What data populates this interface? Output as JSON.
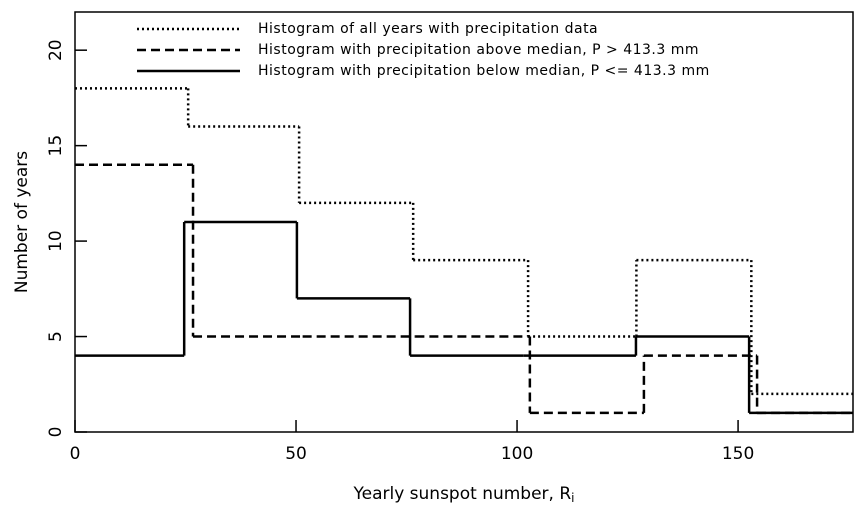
{
  "chart_data": {
    "type": "histogram",
    "xlabel": "Yearly sunspot number, R",
    "xlabel_subscript": "i",
    "ylabel": "Number of years",
    "xlim": [
      0,
      176
    ],
    "ylim": [
      0,
      22
    ],
    "xticks": [
      0,
      50,
      100,
      150
    ],
    "yticks": [
      0,
      5,
      10,
      15,
      20
    ],
    "legend": "top",
    "series": [
      {
        "name": "Histogram of all years with precipitation data",
        "color": "#000000",
        "style": "dotted",
        "bins": [
          0,
          25.6,
          50.7,
          76.5,
          102.5,
          127,
          153,
          176
        ],
        "values": [
          18,
          16,
          12,
          9,
          5,
          9,
          2
        ]
      },
      {
        "name": "Histogram with precipitation above median, P >  413.3 mm",
        "color": "#000000",
        "style": "dashed",
        "bins": [
          0,
          26.7,
          51.5,
          77,
          102.9,
          128.7,
          154.3,
          176
        ],
        "values": [
          14,
          5,
          5,
          5,
          1,
          4,
          1
        ]
      },
      {
        "name": "Histogram with precipitation below median, P <= 413.3 mm",
        "color": "#000000",
        "style": "solid",
        "bins": [
          0,
          24.7,
          50.2,
          75.8,
          101.4,
          126.9,
          152.5,
          176
        ],
        "values": [
          4,
          11,
          7,
          4,
          4,
          5,
          1
        ]
      }
    ]
  }
}
